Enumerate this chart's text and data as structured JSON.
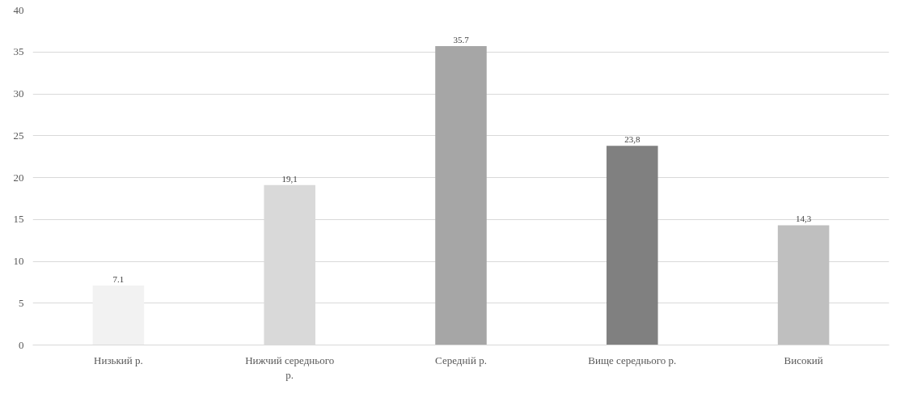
{
  "chart_data": {
    "type": "bar",
    "categories": [
      "Низький р.",
      "Нижчий середнього р.",
      "Середній р.",
      "Вище середнього р.",
      "Високий"
    ],
    "values": [
      7.1,
      19.1,
      35.7,
      23.8,
      14.3
    ],
    "colors": [
      "#f2f2f2",
      "#d9d9d9",
      "#a6a6a6",
      "#808080",
      "#bfbfbf"
    ],
    "value_labels": [
      "7.1",
      "19,1",
      "35.7",
      "23,8",
      "14,3"
    ],
    "ylim": [
      0,
      40
    ],
    "yticks": [
      0,
      5,
      10,
      15,
      20,
      25,
      30,
      35,
      40
    ],
    "grid": "y"
  }
}
